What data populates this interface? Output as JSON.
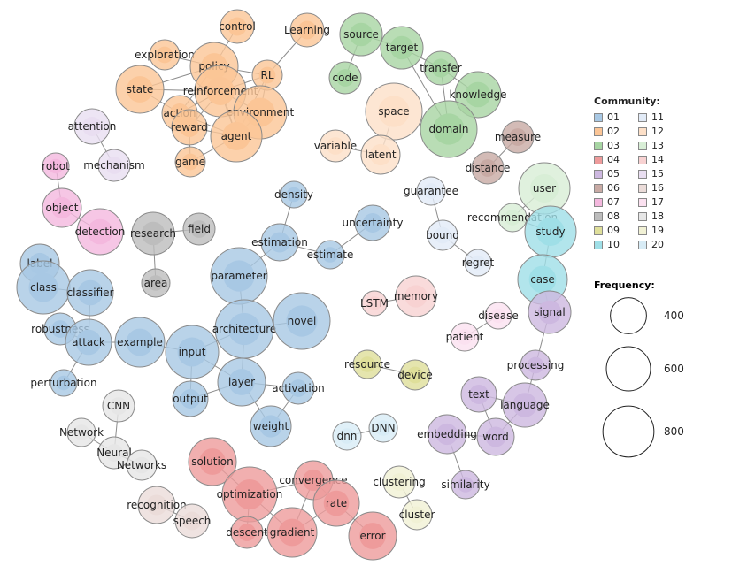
{
  "legend": {
    "community_title": "Community:",
    "frequency_title": "Frequency:",
    "communities": [
      {
        "label": "01",
        "color": "#a8c8e4"
      },
      {
        "label": "11",
        "color": "#e2ebf7"
      },
      {
        "label": "02",
        "color": "#fbc596"
      },
      {
        "label": "12",
        "color": "#fde0c8"
      },
      {
        "label": "03",
        "color": "#a7d5a3"
      },
      {
        "label": "13",
        "color": "#d8eed6"
      },
      {
        "label": "04",
        "color": "#ee9b9b"
      },
      {
        "label": "14",
        "color": "#f8d2d2"
      },
      {
        "label": "05",
        "color": "#cdb8e0"
      },
      {
        "label": "15",
        "color": "#e9def1"
      },
      {
        "label": "06",
        "color": "#c8aaa4"
      },
      {
        "label": "16",
        "color": "#ebdcd9"
      },
      {
        "label": "07",
        "color": "#f4b8de"
      },
      {
        "label": "17",
        "color": "#fbe1f0"
      },
      {
        "label": "08",
        "color": "#bdbdbd"
      },
      {
        "label": "18",
        "color": "#e6e6e6"
      },
      {
        "label": "09",
        "color": "#dfdf9a"
      },
      {
        "label": "19",
        "color": "#f1f1d5"
      },
      {
        "label": "10",
        "color": "#9fdfe7"
      },
      {
        "label": "20",
        "color": "#d8ecf6"
      }
    ],
    "frequency": [
      {
        "label": "400",
        "value": 400
      },
      {
        "label": "600",
        "value": 600
      },
      {
        "label": "800",
        "value": 800
      }
    ]
  },
  "nodes": [
    {
      "id": "control",
      "label": "control",
      "community": "02"
    },
    {
      "id": "Learning",
      "label": "Learning",
      "community": "02"
    },
    {
      "id": "exploration",
      "label": "exploration",
      "community": "02"
    },
    {
      "id": "policy",
      "label": "policy",
      "community": "02"
    },
    {
      "id": "RL",
      "label": "RL",
      "community": "02"
    },
    {
      "id": "state",
      "label": "state",
      "community": "02"
    },
    {
      "id": "reinforcement",
      "label": "reinforcement",
      "community": "02"
    },
    {
      "id": "action",
      "label": "action",
      "community": "02"
    },
    {
      "id": "environment",
      "label": "environment",
      "community": "02"
    },
    {
      "id": "reward",
      "label": "reward",
      "community": "02"
    },
    {
      "id": "agent",
      "label": "agent",
      "community": "02"
    },
    {
      "id": "game",
      "label": "game",
      "community": "02"
    },
    {
      "id": "source",
      "label": "source",
      "community": "03"
    },
    {
      "id": "target",
      "label": "target",
      "community": "03"
    },
    {
      "id": "code",
      "label": "code",
      "community": "03"
    },
    {
      "id": "transfer",
      "label": "transfer",
      "community": "03"
    },
    {
      "id": "knowledge",
      "label": "knowledge",
      "community": "03"
    },
    {
      "id": "domain",
      "label": "domain",
      "community": "03"
    },
    {
      "id": "space",
      "label": "space",
      "community": "12"
    },
    {
      "id": "variable",
      "label": "variable",
      "community": "12"
    },
    {
      "id": "latent",
      "label": "latent",
      "community": "12"
    },
    {
      "id": "measure",
      "label": "measure",
      "community": "06"
    },
    {
      "id": "distance",
      "label": "distance",
      "community": "06"
    },
    {
      "id": "attention",
      "label": "attention",
      "community": "15"
    },
    {
      "id": "mechanism",
      "label": "mechanism",
      "community": "15"
    },
    {
      "id": "robot",
      "label": "robot",
      "community": "07"
    },
    {
      "id": "object",
      "label": "object",
      "community": "07"
    },
    {
      "id": "detection",
      "label": "detection",
      "community": "07"
    },
    {
      "id": "user",
      "label": "user",
      "community": "13"
    },
    {
      "id": "recommendation",
      "label": "recommendation",
      "community": "13"
    },
    {
      "id": "guarantee",
      "label": "guarantee",
      "community": "11"
    },
    {
      "id": "bound",
      "label": "bound",
      "community": "11"
    },
    {
      "id": "regret",
      "label": "regret",
      "community": "11"
    },
    {
      "id": "study",
      "label": "study",
      "community": "10"
    },
    {
      "id": "case",
      "label": "case",
      "community": "10"
    },
    {
      "id": "research",
      "label": "research",
      "community": "08"
    },
    {
      "id": "field",
      "label": "field",
      "community": "08"
    },
    {
      "id": "area",
      "label": "area",
      "community": "08"
    },
    {
      "id": "density",
      "label": "density",
      "community": "01"
    },
    {
      "id": "estimation",
      "label": "estimation",
      "community": "01"
    },
    {
      "id": "uncertainty",
      "label": "uncertainty",
      "community": "01"
    },
    {
      "id": "estimate",
      "label": "estimate",
      "community": "01"
    },
    {
      "id": "parameter",
      "label": "parameter",
      "community": "01"
    },
    {
      "id": "label",
      "label": "label",
      "community": "01"
    },
    {
      "id": "class",
      "label": "class",
      "community": "01"
    },
    {
      "id": "classifier",
      "label": "classifier",
      "community": "01"
    },
    {
      "id": "robustness",
      "label": "robustness",
      "community": "01"
    },
    {
      "id": "attack",
      "label": "attack",
      "community": "01"
    },
    {
      "id": "example",
      "label": "example",
      "community": "01"
    },
    {
      "id": "input",
      "label": "input",
      "community": "01"
    },
    {
      "id": "architecture",
      "label": "architecture",
      "community": "01"
    },
    {
      "id": "novel",
      "label": "novel",
      "community": "01"
    },
    {
      "id": "perturbation",
      "label": "perturbation",
      "community": "01"
    },
    {
      "id": "output",
      "label": "output",
      "community": "01"
    },
    {
      "id": "layer",
      "label": "layer",
      "community": "01"
    },
    {
      "id": "activation",
      "label": "activation",
      "community": "01"
    },
    {
      "id": "weight",
      "label": "weight",
      "community": "01"
    },
    {
      "id": "LSTM",
      "label": "LSTM",
      "community": "14"
    },
    {
      "id": "memory",
      "label": "memory",
      "community": "14"
    },
    {
      "id": "disease",
      "label": "disease",
      "community": "17"
    },
    {
      "id": "patient",
      "label": "patient",
      "community": "17"
    },
    {
      "id": "signal",
      "label": "signal",
      "community": "05"
    },
    {
      "id": "processing",
      "label": "processing",
      "community": "05"
    },
    {
      "id": "text",
      "label": "text",
      "community": "05"
    },
    {
      "id": "language",
      "label": "language",
      "community": "05"
    },
    {
      "id": "word",
      "label": "word",
      "community": "05"
    },
    {
      "id": "embedding",
      "label": "embedding",
      "community": "05"
    },
    {
      "id": "similarity",
      "label": "similarity",
      "community": "05"
    },
    {
      "id": "resource",
      "label": "resource",
      "community": "09"
    },
    {
      "id": "device",
      "label": "device",
      "community": "09"
    },
    {
      "id": "dnn",
      "label": "dnn",
      "community": "20"
    },
    {
      "id": "DNN",
      "label": "DNN",
      "community": "20"
    },
    {
      "id": "CNN",
      "label": "CNN",
      "community": "18"
    },
    {
      "id": "Network",
      "label": "Network",
      "community": "18"
    },
    {
      "id": "Neural",
      "label": "Neural",
      "community": "18"
    },
    {
      "id": "Networks",
      "label": "Networks",
      "community": "18"
    },
    {
      "id": "solution",
      "label": "solution",
      "community": "04"
    },
    {
      "id": "optimization",
      "label": "optimization",
      "community": "04"
    },
    {
      "id": "convergence",
      "label": "convergence",
      "community": "04"
    },
    {
      "id": "rate",
      "label": "rate",
      "community": "04"
    },
    {
      "id": "descent",
      "label": "descent",
      "community": "04"
    },
    {
      "id": "gradient",
      "label": "gradient",
      "community": "04"
    },
    {
      "id": "error",
      "label": "error",
      "community": "04"
    },
    {
      "id": "clustering",
      "label": "clustering",
      "community": "19"
    },
    {
      "id": "cluster",
      "label": "cluster",
      "community": "19"
    },
    {
      "id": "recognition",
      "label": "recognition",
      "community": "16"
    },
    {
      "id": "speech",
      "label": "speech",
      "community": "16"
    }
  ],
  "edges": [
    [
      "control",
      "policy"
    ],
    [
      "Learning",
      "RL"
    ],
    [
      "exploration",
      "policy"
    ],
    [
      "policy",
      "RL"
    ],
    [
      "policy",
      "reinforcement"
    ],
    [
      "policy",
      "state"
    ],
    [
      "policy",
      "action"
    ],
    [
      "policy",
      "agent"
    ],
    [
      "RL",
      "reinforcement"
    ],
    [
      "RL",
      "environment"
    ],
    [
      "RL",
      "agent"
    ],
    [
      "state",
      "action"
    ],
    [
      "state",
      "reinforcement"
    ],
    [
      "reinforcement",
      "environment"
    ],
    [
      "reinforcement",
      "agent"
    ],
    [
      "reinforcement",
      "action"
    ],
    [
      "reinforcement",
      "reward"
    ],
    [
      "action",
      "reward"
    ],
    [
      "action",
      "agent"
    ],
    [
      "reward",
      "agent"
    ],
    [
      "environment",
      "agent"
    ],
    [
      "agent",
      "game"
    ],
    [
      "reward",
      "game"
    ],
    [
      "source",
      "target"
    ],
    [
      "source",
      "code"
    ],
    [
      "target",
      "transfer"
    ],
    [
      "transfer",
      "knowledge"
    ],
    [
      "target",
      "domain"
    ],
    [
      "transfer",
      "domain"
    ],
    [
      "space",
      "latent"
    ],
    [
      "variable",
      "latent"
    ],
    [
      "measure",
      "distance"
    ],
    [
      "attention",
      "mechanism"
    ],
    [
      "robot",
      "object"
    ],
    [
      "object",
      "detection"
    ],
    [
      "user",
      "recommendation"
    ],
    [
      "recommendation",
      "study"
    ],
    [
      "guarantee",
      "bound"
    ],
    [
      "bound",
      "regret"
    ],
    [
      "study",
      "case"
    ],
    [
      "research",
      "field"
    ],
    [
      "research",
      "area"
    ],
    [
      "density",
      "estimation"
    ],
    [
      "estimation",
      "estimate"
    ],
    [
      "uncertainty",
      "estimate"
    ],
    [
      "estimation",
      "parameter"
    ],
    [
      "label",
      "class"
    ],
    [
      "class",
      "classifier"
    ],
    [
      "classifier",
      "attack"
    ],
    [
      "robustness",
      "attack"
    ],
    [
      "attack",
      "example"
    ],
    [
      "attack",
      "perturbation"
    ],
    [
      "example",
      "input"
    ],
    [
      "input",
      "architecture"
    ],
    [
      "input",
      "output"
    ],
    [
      "input",
      "layer"
    ],
    [
      "architecture",
      "novel"
    ],
    [
      "architecture",
      "layer"
    ],
    [
      "parameter",
      "architecture"
    ],
    [
      "layer",
      "output"
    ],
    [
      "layer",
      "activation"
    ],
    [
      "layer",
      "weight"
    ],
    [
      "activation",
      "weight"
    ],
    [
      "LSTM",
      "memory"
    ],
    [
      "disease",
      "patient"
    ],
    [
      "case",
      "signal"
    ],
    [
      "signal",
      "processing"
    ],
    [
      "processing",
      "language"
    ],
    [
      "text",
      "language"
    ],
    [
      "language",
      "word"
    ],
    [
      "text",
      "word"
    ],
    [
      "word",
      "embedding"
    ],
    [
      "embedding",
      "similarity"
    ],
    [
      "resource",
      "device"
    ],
    [
      "dnn",
      "DNN"
    ],
    [
      "CNN",
      "Neural"
    ],
    [
      "Network",
      "Neural"
    ],
    [
      "Neural",
      "Networks"
    ],
    [
      "solution",
      "optimization"
    ],
    [
      "optimization",
      "convergence"
    ],
    [
      "optimization",
      "descent"
    ],
    [
      "optimization",
      "gradient"
    ],
    [
      "convergence",
      "rate"
    ],
    [
      "convergence",
      "gradient"
    ],
    [
      "rate",
      "error"
    ],
    [
      "rate",
      "gradient"
    ],
    [
      "descent",
      "gradient"
    ],
    [
      "clustering",
      "cluster"
    ],
    [
      "recognition",
      "speech"
    ]
  ]
}
